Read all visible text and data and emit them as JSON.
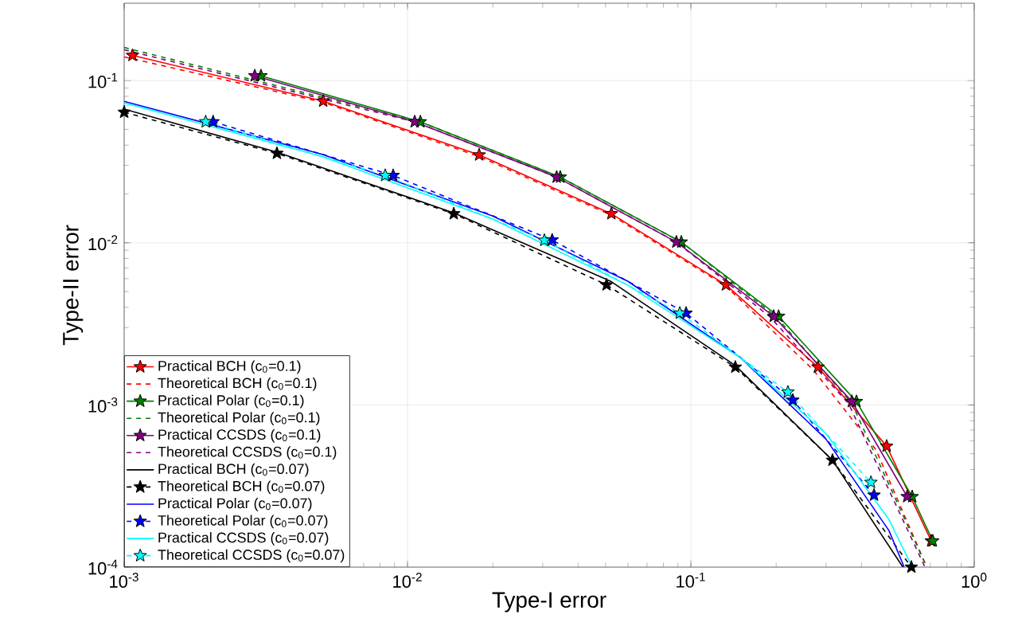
{
  "chart_data": {
    "type": "line",
    "xlabel": "Type-I error",
    "ylabel": "Type-II error",
    "log": "xy",
    "grid": true,
    "legend": "bottom left",
    "xlim": [
      0.001,
      1
    ],
    "ylim": [
      0.0001,
      0.3
    ],
    "xticks": [
      {
        "value": 0.001,
        "label": "10$^{-3}$"
      },
      {
        "value": 0.01,
        "label": "10$^{-2}$"
      },
      {
        "value": 0.1,
        "label": "10$^{-1}$"
      },
      {
        "value": 1,
        "label": "10$^{0}$"
      }
    ],
    "yticks": [
      {
        "value": 0.0001,
        "label": "10$^{-4}$"
      },
      {
        "value": 0.001,
        "label": "10$^{-3}$"
      },
      {
        "value": 0.01,
        "label": "10$^{-2}$"
      },
      {
        "value": 0.1,
        "label": "10$^{-1}$"
      }
    ],
    "series": [
      {
        "name": "Practical BCH (c$_{0}$=0.1)",
        "color": "#ff0000",
        "line_style": "solid",
        "marker": "star",
        "x": [
          0.00107,
          0.00504,
          0.0179,
          0.0524,
          0.133,
          0.281,
          0.491,
          0.705
        ],
        "values": [
          0.143,
          0.0747,
          0.0348,
          0.0151,
          0.0055,
          0.00171,
          0.000557,
          0.000145
        ]
      },
      {
        "name": "Theoretical BCH (c$_{0}$=0.1)",
        "color": "#ff0000",
        "line_style": "dashed",
        "marker": "none",
        "x": [
          0.001,
          0.00504,
          0.0179,
          0.0524,
          0.133,
          0.27,
          0.45,
          0.68
        ],
        "values": [
          0.14,
          0.0735,
          0.034,
          0.0148,
          0.0054,
          0.00165,
          0.00053,
          0.0001
        ]
      },
      {
        "name": "Practical Polar (c$_{0}$=0.1)",
        "color": "#008000",
        "line_style": "solid",
        "marker": "star",
        "x": [
          0.00304,
          0.0111,
          0.0346,
          0.0925,
          0.204,
          0.384,
          0.604,
          0.714
        ],
        "values": [
          0.107,
          0.0557,
          0.0254,
          0.0101,
          0.00352,
          0.00105,
          0.000272,
          0.000145
        ]
      },
      {
        "name": "Theoretical Polar (c$_{0}$=0.1)",
        "color": "#008000",
        "line_style": "dashed",
        "marker": "none",
        "x": [
          0.001,
          0.0111,
          0.0346,
          0.0925,
          0.2,
          0.37,
          0.68
        ],
        "values": [
          0.16,
          0.0557,
          0.0254,
          0.0101,
          0.0035,
          0.00102,
          0.0001
        ]
      },
      {
        "name": "Practical CCSDS (c$_{0}$=0.1)",
        "color": "#800080",
        "line_style": "solid",
        "marker": "star",
        "x": [
          0.00289,
          0.0106,
          0.0336,
          0.0889,
          0.196,
          0.37,
          0.58
        ],
        "values": [
          0.107,
          0.0557,
          0.0254,
          0.0101,
          0.00352,
          0.00105,
          0.000272
        ]
      },
      {
        "name": "Theoretical CCSDS (c$_{0}$=0.1)",
        "color": "#800080",
        "line_style": "dashed",
        "marker": "none",
        "x": [
          0.001,
          0.0106,
          0.0336,
          0.0889,
          0.19,
          0.36,
          0.67
        ],
        "values": [
          0.155,
          0.0557,
          0.0254,
          0.0101,
          0.0035,
          0.00102,
          0.0001
        ]
      },
      {
        "name": "Practical BCH (c$_{0}$=0.07)",
        "color": "#000000",
        "line_style": "solid",
        "marker": "none",
        "x": [
          0.001,
          0.00346,
          0.01456,
          0.052,
          0.1435,
          0.316,
          0.56
        ],
        "values": [
          0.0667,
          0.0362,
          0.0153,
          0.0058,
          0.00175,
          0.000456,
          0.0001
        ]
      },
      {
        "name": "Theoretical BCH (c$_{0}$=0.07)",
        "color": "#000000",
        "line_style": "dashed",
        "marker": "star",
        "x": [
          0.001,
          0.00346,
          0.01456,
          0.0504,
          0.1435,
          0.316,
          0.6
        ],
        "values": [
          0.0638,
          0.0356,
          0.0151,
          0.0055,
          0.00171,
          0.000456,
          0.0001
        ]
      },
      {
        "name": "Practical Polar (c$_{0}$=0.07)",
        "color": "#0000ff",
        "line_style": "solid",
        "marker": "none",
        "x": [
          0.001,
          0.005,
          0.02,
          0.06,
          0.15,
          0.3,
          0.5,
          0.566
        ],
        "values": [
          0.0745,
          0.0351,
          0.0146,
          0.00578,
          0.00195,
          0.000615,
          0.000168,
          0.0001
        ]
      },
      {
        "name": "Theoretical Polar (c$_{0}$=0.07)",
        "color": "#0000ff",
        "line_style": "dashed",
        "marker": "star",
        "x": [
          0.00206,
          0.0089,
          0.0324,
          0.0962,
          0.229,
          0.443
        ],
        "values": [
          0.0557,
          0.026,
          0.0104,
          0.00368,
          0.00107,
          0.000278
        ]
      },
      {
        "name": "Practical CCSDS (c$_{0}$=0.07)",
        "color": "#00ffff",
        "line_style": "solid",
        "marker": "none",
        "x": [
          0.001,
          0.005,
          0.02,
          0.06,
          0.15,
          0.3,
          0.5,
          0.604
        ],
        "values": [
          0.0729,
          0.034,
          0.014,
          0.00547,
          0.00195,
          0.000665,
          0.000197,
          0.0001
        ]
      },
      {
        "name": "Theoretical CCSDS (c$_{0}$=0.07)",
        "color": "#00ffff",
        "line_style": "dashed",
        "marker": "star",
        "x": [
          0.00194,
          0.00834,
          0.0304,
          0.0914,
          0.22,
          0.432
        ],
        "values": [
          0.0557,
          0.026,
          0.01035,
          0.00368,
          0.0012,
          0.000333
        ]
      }
    ]
  }
}
